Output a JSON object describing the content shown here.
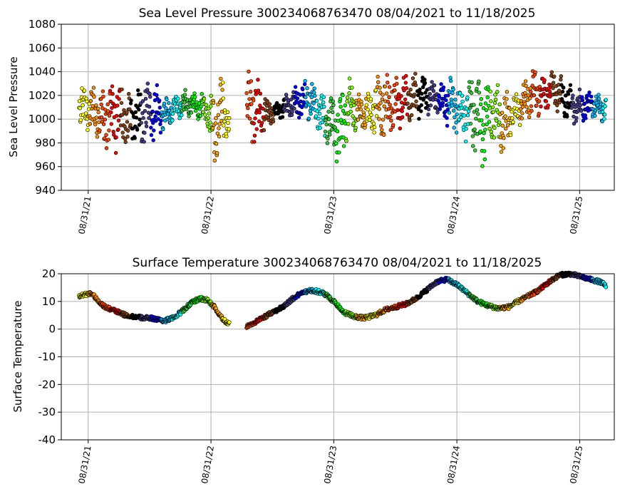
{
  "chart_data": [
    {
      "type": "scatter",
      "title": "Sea Level Pressure 300234068763470  08/04/2021 to 11/18/2025",
      "ylabel": "Sea Level Pressure",
      "xlabel": "",
      "ylim": [
        940,
        1080
      ],
      "yticks": [
        940,
        960,
        980,
        1000,
        1020,
        1040,
        1060,
        1080
      ],
      "xlim": [
        "2021-06-12",
        "2025-12-12"
      ],
      "xticks": [
        "2021-08-31",
        "2022-08-31",
        "2023-08-31",
        "2024-08-31",
        "2025-08-31"
      ],
      "xtick_labels": [
        "08/31/21",
        "08/31/22",
        "08/31/23",
        "08/31/24",
        "08/31/25"
      ],
      "grid": true,
      "segments": [
        {
          "start": "2021-08-04",
          "end": "2022-10-25"
        },
        {
          "start": "2022-12-15",
          "end": "2025-11-18"
        }
      ],
      "series": [
        {
          "x": [
            "2021-08-04",
            "2021-09-10",
            "2021-10-20",
            "2021-11-20",
            "2021-12-20",
            "2022-01-20",
            "2022-02-20",
            "2022-03-20",
            "2022-04-20",
            "2022-05-20",
            "2022-06-20",
            "2022-07-20",
            "2022-08-20",
            "2022-09-10",
            "2022-10-01",
            "2022-10-25",
            "2022-12-15",
            "2023-01-15",
            "2023-02-15",
            "2023-03-15",
            "2023-04-15",
            "2023-05-15",
            "2023-06-15",
            "2023-07-15",
            "2023-08-15",
            "2023-09-15",
            "2023-10-15",
            "2023-11-15",
            "2023-12-15",
            "2024-01-15",
            "2024-02-15",
            "2024-03-15",
            "2024-04-15",
            "2024-05-15",
            "2024-06-15",
            "2024-07-15",
            "2024-08-15",
            "2024-09-15",
            "2024-10-15",
            "2024-11-15",
            "2024-12-15",
            "2025-01-15",
            "2025-02-15",
            "2025-03-15",
            "2025-04-15",
            "2025-05-15",
            "2025-06-15",
            "2025-07-15",
            "2025-08-15",
            "2025-09-15",
            "2025-10-15",
            "2025-11-18"
          ],
          "y_min": [
            991,
            986,
            970,
            968,
            975,
            978,
            975,
            980,
            990,
            1000,
            1000,
            1000,
            994,
            950,
            975,
            983,
            980,
            975,
            990,
            1000,
            1000,
            998,
            1000,
            990,
            975,
            955,
            985,
            990,
            985,
            975,
            985,
            990,
            998,
            1000,
            1005,
            1000,
            990,
            985,
            975,
            955,
            980,
            965,
            990,
            995,
            1000,
            1005,
            1010,
            1000,
            995,
            998,
            1000,
            995
          ],
          "y_max": [
            1031,
            1028,
            1030,
            1041,
            1023,
            1025,
            1037,
            1030,
            1018,
            1022,
            1025,
            1023,
            1022,
            1025,
            1042,
            1008,
            1044,
            1040,
            1018,
            1015,
            1025,
            1028,
            1036,
            1025,
            1020,
            1025,
            1038,
            1020,
            1025,
            1045,
            1040,
            1038,
            1038,
            1040,
            1035,
            1030,
            1040,
            1025,
            1044,
            1042,
            1033,
            1025,
            1020,
            1030,
            1044,
            1038,
            1042,
            1035,
            1025,
            1025,
            1022,
            1022
          ]
        }
      ]
    },
    {
      "type": "scatter",
      "title": "Surface Temperature 300234068763470  08/04/2021 to 11/18/2025",
      "ylabel": "Surface Temperature",
      "xlabel": "",
      "ylim": [
        -40,
        20
      ],
      "yticks": [
        -40,
        -30,
        -20,
        -10,
        0,
        10,
        20
      ],
      "xlim": [
        "2021-06-12",
        "2025-12-12"
      ],
      "xticks": [
        "2021-08-31",
        "2022-08-31",
        "2023-08-31",
        "2024-08-31",
        "2025-08-31"
      ],
      "xtick_labels": [
        "08/31/21",
        "08/31/22",
        "08/31/23",
        "08/31/24",
        "08/31/25"
      ],
      "grid": true,
      "segments": [
        {
          "start": "2021-08-04",
          "end": "2022-10-25"
        },
        {
          "start": "2022-12-15",
          "end": "2025-11-18"
        }
      ],
      "series": [
        {
          "x": [
            "2021-08-04",
            "2021-08-20",
            "2021-09-10",
            "2021-10-01",
            "2021-10-20",
            "2021-11-10",
            "2021-12-01",
            "2021-12-20",
            "2022-01-15",
            "2022-02-10",
            "2022-03-05",
            "2022-03-25",
            "2022-04-15",
            "2022-05-10",
            "2022-06-01",
            "2022-06-20",
            "2022-07-10",
            "2022-08-01",
            "2022-08-20",
            "2022-09-10",
            "2022-09-25",
            "2022-10-10",
            "2022-10-25",
            "2022-12-15",
            "2023-01-10",
            "2023-02-01",
            "2023-03-01",
            "2023-04-01",
            "2023-05-01",
            "2023-06-01",
            "2023-07-01",
            "2023-08-01",
            "2023-09-01",
            "2023-10-01",
            "2023-11-01",
            "2023-12-01",
            "2024-01-01",
            "2024-02-01",
            "2024-03-01",
            "2024-04-01",
            "2024-05-01",
            "2024-06-01",
            "2024-07-01",
            "2024-08-01",
            "2024-09-01",
            "2024-10-01",
            "2024-11-01",
            "2024-12-01",
            "2025-01-01",
            "2025-02-01",
            "2025-03-01",
            "2025-04-01",
            "2025-05-01",
            "2025-06-01",
            "2025-07-01",
            "2025-08-01",
            "2025-09-01",
            "2025-10-01",
            "2025-11-01",
            "2025-11-18"
          ],
          "y": [
            12,
            12.5,
            13,
            10,
            8,
            7,
            6,
            5,
            4.5,
            4,
            4,
            3.5,
            3,
            4,
            6,
            8,
            10,
            11,
            10.5,
            8,
            5,
            3,
            2,
            1,
            2.5,
            4,
            6,
            8,
            11,
            13.5,
            14,
            13,
            10,
            6,
            4.5,
            4,
            5,
            7,
            8,
            9,
            11,
            14,
            17,
            18,
            16,
            13,
            10,
            8.5,
            7.5,
            8,
            10,
            12,
            14,
            17,
            19.5,
            20,
            19,
            18,
            17,
            15.5
          ]
        }
      ]
    }
  ]
}
